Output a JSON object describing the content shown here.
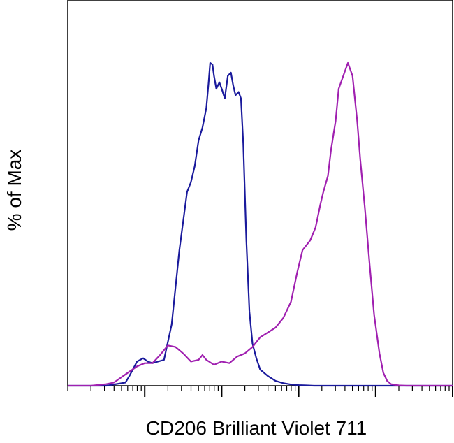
{
  "chart_data": {
    "type": "line",
    "title": "",
    "xlabel": "CD206 Brilliant Violet 711",
    "ylabel": "% of Max",
    "x_scale": "log",
    "x_decades": 5,
    "xlim": [
      0,
      5
    ],
    "ylim": [
      0,
      100
    ],
    "grid": false,
    "legend": "none",
    "series": [
      {
        "color": "#1a1a9c",
        "x": [
          0.0,
          0.14,
          0.3,
          0.5,
          0.75,
          0.8,
          0.9,
          0.98,
          1.04,
          1.1,
          1.25,
          1.35,
          1.45,
          1.55,
          1.6,
          1.65,
          1.7,
          1.75,
          1.8,
          1.83,
          1.85,
          1.88,
          1.9,
          1.93,
          1.97,
          2.0,
          2.04,
          2.08,
          2.12,
          2.15,
          2.18,
          2.22,
          2.25,
          2.28,
          2.32,
          2.36,
          2.4,
          2.45,
          2.5,
          2.6,
          2.7,
          2.8,
          2.9,
          3.0,
          3.1,
          3.2,
          3.3,
          3.5,
          4.0,
          5.0
        ],
        "y": [
          0,
          0,
          0,
          0,
          1.0,
          3.0,
          7.5,
          8.5,
          7.5,
          7.0,
          8.0,
          19.0,
          42.0,
          60.0,
          63.0,
          68.0,
          76.0,
          80.0,
          86.0,
          94.0,
          100.0,
          99.5,
          96.0,
          92.0,
          94.0,
          92.0,
          89.0,
          96.0,
          97.0,
          93.0,
          90.0,
          91.0,
          89.0,
          75.0,
          45.0,
          23.0,
          13.0,
          8.5,
          5.0,
          3.0,
          1.5,
          0.8,
          0.4,
          0.2,
          0.1,
          0,
          0,
          0,
          0,
          0
        ]
      },
      {
        "color": "#a020b0",
        "x": [
          0.0,
          0.3,
          0.5,
          0.6,
          0.75,
          0.9,
          1.0,
          1.1,
          1.2,
          1.3,
          1.4,
          1.5,
          1.6,
          1.7,
          1.75,
          1.8,
          1.9,
          2.0,
          2.1,
          2.2,
          2.3,
          2.4,
          2.5,
          2.6,
          2.7,
          2.8,
          2.9,
          2.98,
          3.05,
          3.15,
          3.22,
          3.28,
          3.32,
          3.38,
          3.42,
          3.48,
          3.52,
          3.58,
          3.64,
          3.7,
          3.76,
          3.8,
          3.86,
          3.92,
          3.98,
          4.05,
          4.1,
          4.15,
          4.2,
          4.3,
          4.4,
          5.0
        ],
        "y": [
          0,
          0,
          0.5,
          1.0,
          3.5,
          6.0,
          7.0,
          7.0,
          9.5,
          12.5,
          12.0,
          10.0,
          7.5,
          8.0,
          9.5,
          8.0,
          6.5,
          7.5,
          7.0,
          9.0,
          10.0,
          12.0,
          15.0,
          16.5,
          18.0,
          21.0,
          26.0,
          35.0,
          42.0,
          45.0,
          49.0,
          56.0,
          60.0,
          65.0,
          73.0,
          82.0,
          92.0,
          96.0,
          100.0,
          96.0,
          82.0,
          70.0,
          55.0,
          38.0,
          22.0,
          10.0,
          4.0,
          1.5,
          0.5,
          0.1,
          0,
          0
        ]
      }
    ]
  }
}
